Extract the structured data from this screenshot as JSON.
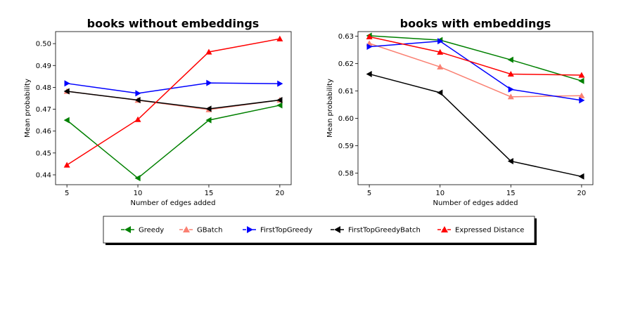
{
  "chart_data": [
    {
      "type": "line",
      "title": "books without embeddings",
      "xlabel": "Number of edges added",
      "ylabel": "Mean probability",
      "x": [
        5,
        10,
        15,
        20
      ],
      "xlim": [
        4.2,
        20.8
      ],
      "ylim": [
        0.4355,
        0.5055
      ],
      "xticks": [
        5,
        10,
        15,
        20
      ],
      "yticks": [
        0.44,
        0.45,
        0.46,
        0.47,
        0.48,
        0.49,
        0.5
      ],
      "series": [
        {
          "name": "Greedy",
          "color": "#008000",
          "marker": "triangle-left",
          "values": [
            0.465,
            0.4385,
            0.465,
            0.4718
          ]
        },
        {
          "name": "GBatch",
          "color": "#fa8072",
          "marker": "triangle-up",
          "values": [
            0.4782,
            0.4741,
            0.4698,
            0.4742
          ]
        },
        {
          "name": "FirstTopGreedy",
          "color": "#0000ff",
          "marker": "triangle-right",
          "values": [
            0.4818,
            0.4773,
            0.482,
            0.4817
          ]
        },
        {
          "name": "FirstTopGreedyBatch",
          "color": "#000000",
          "marker": "triangle-left",
          "values": [
            0.4782,
            0.4742,
            0.4702,
            0.4742
          ]
        },
        {
          "name": "Expressed Distance",
          "color": "#ff0000",
          "marker": "triangle-up",
          "values": [
            0.4445,
            0.4653,
            0.4962,
            0.5022
          ]
        }
      ]
    },
    {
      "type": "line",
      "title": "books with embeddings",
      "xlabel": "Number of edges added",
      "ylabel": "Mean probability",
      "x": [
        5,
        10,
        15,
        20
      ],
      "xlim": [
        4.2,
        20.8
      ],
      "ylim": [
        0.5758,
        0.6317
      ],
      "xticks": [
        5,
        10,
        15,
        20
      ],
      "yticks": [
        0.58,
        0.59,
        0.6,
        0.61,
        0.62,
        0.63
      ],
      "series": [
        {
          "name": "Greedy",
          "color": "#008000",
          "marker": "triangle-left",
          "values": [
            0.6302,
            0.6286,
            0.6214,
            0.6137
          ]
        },
        {
          "name": "GBatch",
          "color": "#fa8072",
          "marker": "triangle-up",
          "values": [
            0.6274,
            0.6188,
            0.6079,
            0.6083
          ]
        },
        {
          "name": "FirstTopGreedy",
          "color": "#0000ff",
          "marker": "triangle-right",
          "values": [
            0.6262,
            0.6282,
            0.6106,
            0.6066
          ]
        },
        {
          "name": "FirstTopGreedyBatch",
          "color": "#000000",
          "marker": "triangle-left",
          "values": [
            0.6162,
            0.6094,
            0.5844,
            0.5788
          ]
        },
        {
          "name": "Expressed Distance",
          "color": "#ff0000",
          "marker": "triangle-up",
          "values": [
            0.6298,
            0.6242,
            0.6162,
            0.6158
          ]
        }
      ]
    }
  ],
  "legend": {
    "placement": "bottom-center",
    "entries": [
      {
        "label": "Greedy",
        "color": "#008000",
        "marker": "triangle-left"
      },
      {
        "label": "GBatch",
        "color": "#fa8072",
        "marker": "triangle-up"
      },
      {
        "label": "FirstTopGreedy",
        "color": "#0000ff",
        "marker": "triangle-right"
      },
      {
        "label": "FirstTopGreedyBatch",
        "color": "#000000",
        "marker": "triangle-left"
      },
      {
        "label": "Expressed Distance",
        "color": "#ff0000",
        "marker": "triangle-up"
      }
    ]
  }
}
